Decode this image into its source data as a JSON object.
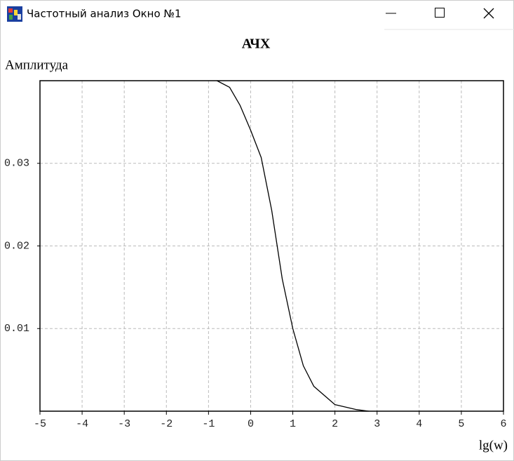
{
  "window": {
    "title": "Частотный анализ Окно №1"
  },
  "chart_data": {
    "type": "line",
    "title": "АЧХ",
    "y_label": "Амплитуда",
    "x_label": "lg(w)",
    "x": [
      -0.8,
      -0.5,
      -0.25,
      0,
      0.25,
      0.5,
      0.75,
      1,
      1.25,
      1.5,
      2,
      2.5,
      2.8
    ],
    "values": [
      0.04,
      0.0392,
      0.037,
      0.034,
      0.0307,
      0.0243,
      0.016,
      0.01,
      0.0055,
      0.003,
      0.0008,
      0.0002,
      0
    ],
    "color": "#000000",
    "xlim": [
      -5,
      6
    ],
    "xticks": [
      -5,
      -4,
      -3,
      -2,
      -1,
      0,
      1,
      2,
      3,
      4,
      5,
      6
    ],
    "ylim": [
      0,
      0.04
    ],
    "yticks": [
      0.01,
      0.02,
      0.03
    ],
    "grid": true
  }
}
